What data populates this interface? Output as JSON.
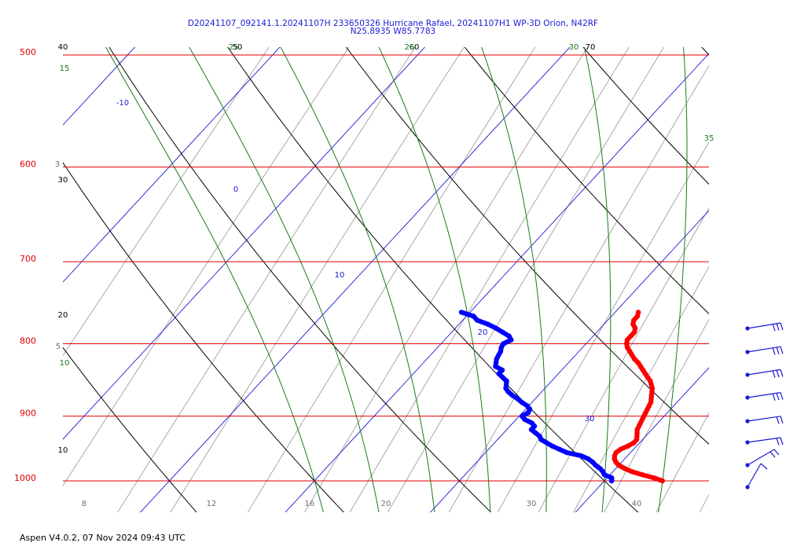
{
  "title_line1": "D20241107_092141.1.20241107H 233650326 Hurricane Rafael, 20241107H1 WP-3D Orion, N42RF",
  "title_line2": "N25.8935 W85.7783",
  "footer": "Aspen V4.0.2, 07 Nov  2024  09:43 UTC",
  "colors": {
    "isobar": "#e00000",
    "isotherm": "#1a1ad6",
    "dry_adiabat": "#000000",
    "moist_adiabat": "#1a7a1a",
    "mixing_ratio": "#a0a0a0",
    "temperature": "#ff0000",
    "dewpoint": "#0000ff",
    "wind_barb": "#1a1ad6"
  },
  "chart_data": {
    "type": "skew-t log-p",
    "pressure_labels": [
      "500",
      "600",
      "700",
      "800",
      "900",
      "1000"
    ],
    "isotherm_labels": [
      "-10",
      "0",
      "10",
      "20",
      "30"
    ],
    "dry_adiabat_labels": [
      "40",
      "50",
      "60",
      "70",
      "30",
      "20",
      "10"
    ],
    "moist_adiabat_labels": [
      "15",
      "25",
      "26",
      "30",
      "35",
      "10"
    ],
    "mixing_ratio_labels": [
      "3",
      "5",
      "8",
      "12",
      "16",
      "20",
      "30",
      "40"
    ],
    "series": [
      {
        "kind": "temperature",
        "units": "°C vs hPa",
        "points": [
          [
            24.0,
            1000
          ],
          [
            23.2,
            995
          ],
          [
            22.2,
            990
          ],
          [
            21.3,
            985
          ],
          [
            20.6,
            980
          ],
          [
            20.0,
            975
          ],
          [
            19.6,
            970
          ],
          [
            19.3,
            965
          ],
          [
            19.1,
            960
          ],
          [
            19.0,
            955
          ],
          [
            19.1,
            950
          ],
          [
            19.4,
            945
          ],
          [
            19.6,
            940
          ],
          [
            19.6,
            935
          ],
          [
            19.4,
            930
          ],
          [
            19.2,
            925
          ],
          [
            19.0,
            920
          ],
          [
            18.9,
            915
          ],
          [
            18.8,
            910
          ],
          [
            18.7,
            905
          ],
          [
            18.6,
            900
          ],
          [
            18.5,
            895
          ],
          [
            18.4,
            890
          ],
          [
            18.3,
            885
          ],
          [
            18.2,
            880
          ],
          [
            18.0,
            875
          ],
          [
            17.8,
            870
          ],
          [
            17.6,
            865
          ],
          [
            17.4,
            860
          ],
          [
            17.1,
            855
          ],
          [
            16.8,
            850
          ],
          [
            16.4,
            845
          ],
          [
            16.0,
            840
          ],
          [
            15.6,
            835
          ],
          [
            15.2,
            830
          ],
          [
            14.8,
            825
          ],
          [
            14.3,
            820
          ],
          [
            13.9,
            815
          ],
          [
            13.5,
            810
          ],
          [
            13.1,
            805
          ],
          [
            12.8,
            800
          ],
          [
            12.6,
            795
          ],
          [
            12.6,
            790
          ],
          [
            12.6,
            785
          ],
          [
            12.4,
            780
          ],
          [
            12.0,
            775
          ],
          [
            11.8,
            770
          ],
          [
            11.8,
            765
          ],
          [
            11.6,
            760
          ]
        ]
      },
      {
        "kind": "dewpoint",
        "units": "°C vs hPa",
        "points": [
          [
            20.5,
            1000
          ],
          [
            20.3,
            995
          ],
          [
            19.6,
            990
          ],
          [
            19.3,
            985
          ],
          [
            18.9,
            980
          ],
          [
            18.4,
            975
          ],
          [
            18.0,
            970
          ],
          [
            17.5,
            965
          ],
          [
            16.8,
            960
          ],
          [
            15.6,
            955
          ],
          [
            14.9,
            950
          ],
          [
            14.2,
            945
          ],
          [
            13.6,
            940
          ],
          [
            13.0,
            935
          ],
          [
            12.7,
            930
          ],
          [
            12.2,
            925
          ],
          [
            11.7,
            920
          ],
          [
            11.7,
            915
          ],
          [
            11.3,
            910
          ],
          [
            10.6,
            905
          ],
          [
            10.2,
            900
          ],
          [
            10.4,
            895
          ],
          [
            10.3,
            890
          ],
          [
            9.9,
            885
          ],
          [
            9.3,
            880
          ],
          [
            8.8,
            875
          ],
          [
            8.2,
            870
          ],
          [
            7.7,
            865
          ],
          [
            7.3,
            860
          ],
          [
            7.1,
            855
          ],
          [
            6.9,
            850
          ],
          [
            6.4,
            845
          ],
          [
            5.9,
            840
          ],
          [
            5.9,
            835
          ],
          [
            5.2,
            830
          ],
          [
            5.0,
            825
          ],
          [
            4.8,
            820
          ],
          [
            4.7,
            815
          ],
          [
            4.6,
            810
          ],
          [
            4.4,
            805
          ],
          [
            4.3,
            800
          ],
          [
            4.6,
            795
          ],
          [
            4.2,
            790
          ],
          [
            3.5,
            785
          ],
          [
            2.8,
            780
          ],
          [
            2.0,
            775
          ],
          [
            1.0,
            770
          ],
          [
            0.5,
            765
          ],
          [
            -0.6,
            760
          ]
        ]
      }
    ],
    "wind_barbs": [
      {
        "pressure": 760
      },
      {
        "pressure": 800
      },
      {
        "pressure": 840
      },
      {
        "pressure": 880
      },
      {
        "pressure": 920
      },
      {
        "pressure": 950
      },
      {
        "pressure": 980
      },
      {
        "pressure": 1010
      }
    ]
  }
}
